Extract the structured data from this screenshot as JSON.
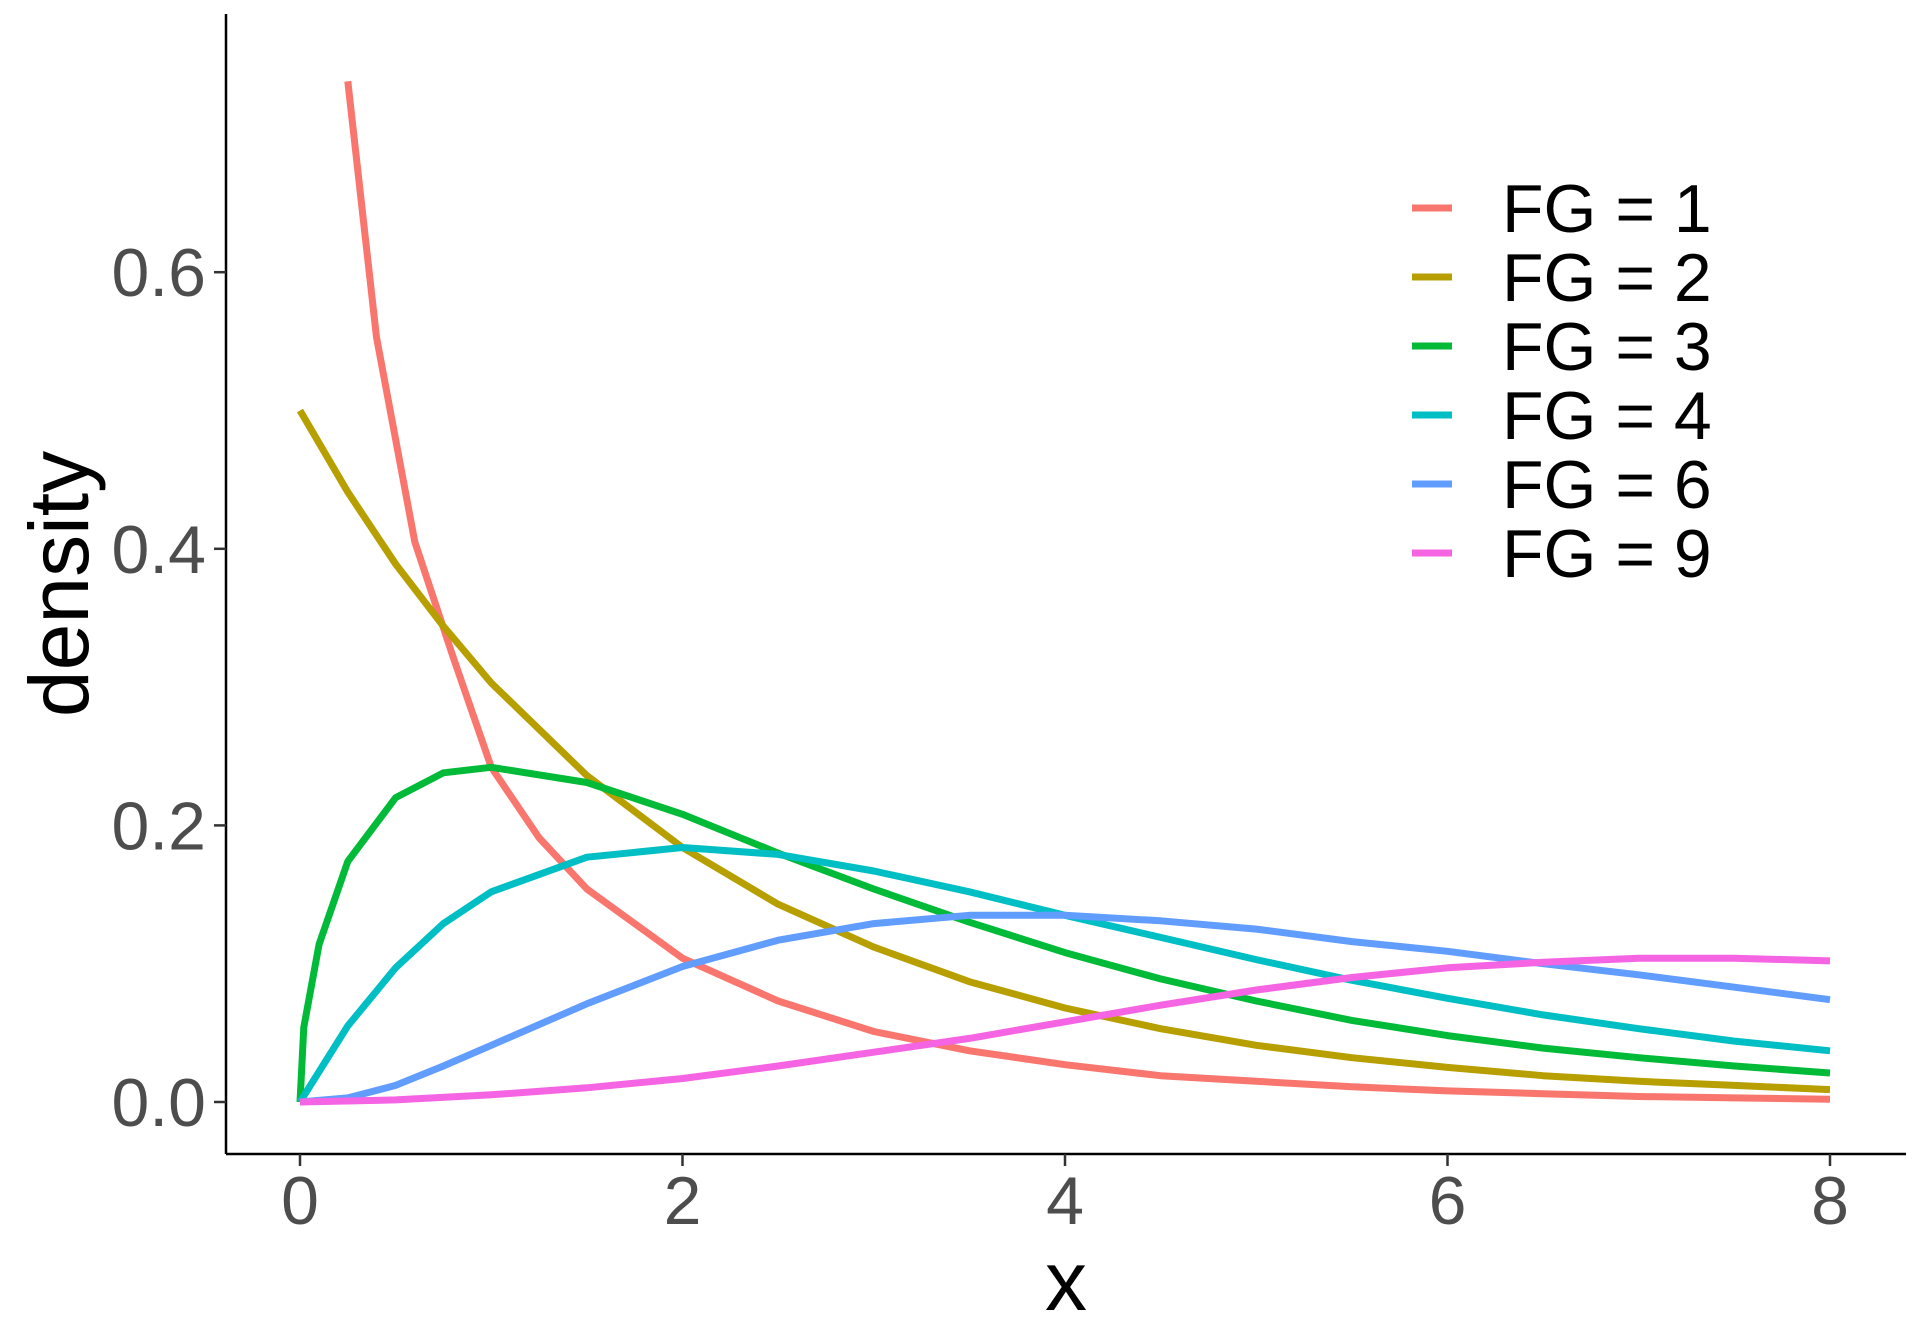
{
  "chart_data": {
    "type": "line",
    "xlabel": "x",
    "ylabel": "density",
    "xlim": [
      0,
      8
    ],
    "ylim": [
      0,
      0.75
    ],
    "x_ticks": [
      0,
      2,
      4,
      6,
      8
    ],
    "x_tick_labels": [
      "0",
      "2",
      "4",
      "6",
      "8"
    ],
    "y_ticks": [
      0.0,
      0.2,
      0.4,
      0.6
    ],
    "y_tick_labels": [
      "0.0",
      "0.2",
      "0.4",
      "0.6"
    ],
    "grid": false,
    "legend": {
      "position": "top-right"
    },
    "series": [
      {
        "name": "FG = 1",
        "color": "#F8766D",
        "x": [
          0.25,
          0.4,
          0.6,
          0.8,
          1.0,
          1.25,
          1.5,
          2.0,
          2.5,
          3.0,
          3.5,
          4.0,
          4.5,
          5.0,
          5.5,
          6.0,
          6.5,
          7.0,
          7.5,
          8.0
        ],
        "y": [
          0.738,
          0.553,
          0.405,
          0.322,
          0.242,
          0.191,
          0.154,
          0.104,
          0.073,
          0.051,
          0.037,
          0.027,
          0.019,
          0.015,
          0.011,
          0.008,
          0.006,
          0.004,
          0.003,
          0.002
        ]
      },
      {
        "name": "FG = 2",
        "color": "#B79F00",
        "x": [
          0.0,
          0.25,
          0.5,
          0.75,
          1.0,
          1.5,
          2.0,
          2.5,
          3.0,
          3.5,
          4.0,
          4.5,
          5.0,
          5.5,
          6.0,
          6.5,
          7.0,
          7.5,
          8.0
        ],
        "y": [
          0.5,
          0.441,
          0.389,
          0.344,
          0.303,
          0.236,
          0.184,
          0.143,
          0.112,
          0.087,
          0.068,
          0.053,
          0.041,
          0.032,
          0.025,
          0.019,
          0.015,
          0.012,
          0.009
        ]
      },
      {
        "name": "FG = 3",
        "color": "#00BA38",
        "x": [
          0.0,
          0.02,
          0.1,
          0.25,
          0.5,
          0.75,
          1.0,
          1.5,
          2.0,
          2.5,
          3.0,
          3.5,
          4.0,
          4.5,
          5.0,
          5.5,
          6.0,
          6.5,
          7.0,
          7.5,
          8.0
        ],
        "y": [
          0.0,
          0.054,
          0.114,
          0.174,
          0.22,
          0.238,
          0.242,
          0.231,
          0.208,
          0.18,
          0.154,
          0.13,
          0.108,
          0.089,
          0.073,
          0.059,
          0.048,
          0.039,
          0.032,
          0.026,
          0.021
        ]
      },
      {
        "name": "FG = 4",
        "color": "#00BFC4",
        "x": [
          0.0,
          0.25,
          0.5,
          0.75,
          1.0,
          1.5,
          2.0,
          2.5,
          3.0,
          3.5,
          4.0,
          4.5,
          5.0,
          5.5,
          6.0,
          6.5,
          7.0,
          7.5,
          8.0
        ],
        "y": [
          0.0,
          0.055,
          0.097,
          0.129,
          0.152,
          0.177,
          0.184,
          0.179,
          0.167,
          0.152,
          0.135,
          0.119,
          0.103,
          0.088,
          0.075,
          0.063,
          0.053,
          0.044,
          0.037
        ]
      },
      {
        "name": "FG = 6",
        "color": "#619CFF",
        "x": [
          0.0,
          0.25,
          0.5,
          0.75,
          1.0,
          1.5,
          2.0,
          2.5,
          3.0,
          3.5,
          4.0,
          4.5,
          5.0,
          5.5,
          6.0,
          6.5,
          7.0,
          7.5,
          8.0
        ],
        "y": [
          0.0,
          0.003,
          0.012,
          0.026,
          0.041,
          0.071,
          0.098,
          0.117,
          0.129,
          0.135,
          0.135,
          0.131,
          0.125,
          0.116,
          0.109,
          0.1,
          0.092,
          0.083,
          0.074
        ]
      },
      {
        "name": "FG = 9",
        "color": "#F564E3",
        "x": [
          0.0,
          0.5,
          1.0,
          1.5,
          2.0,
          2.5,
          3.0,
          3.5,
          4.0,
          4.5,
          5.0,
          5.5,
          6.0,
          6.5,
          7.0,
          7.5,
          8.0
        ],
        "y": [
          0.0,
          0.0015,
          0.0052,
          0.0103,
          0.017,
          0.026,
          0.036,
          0.046,
          0.058,
          0.07,
          0.081,
          0.09,
          0.097,
          0.101,
          0.104,
          0.104,
          0.102
        ]
      }
    ]
  }
}
